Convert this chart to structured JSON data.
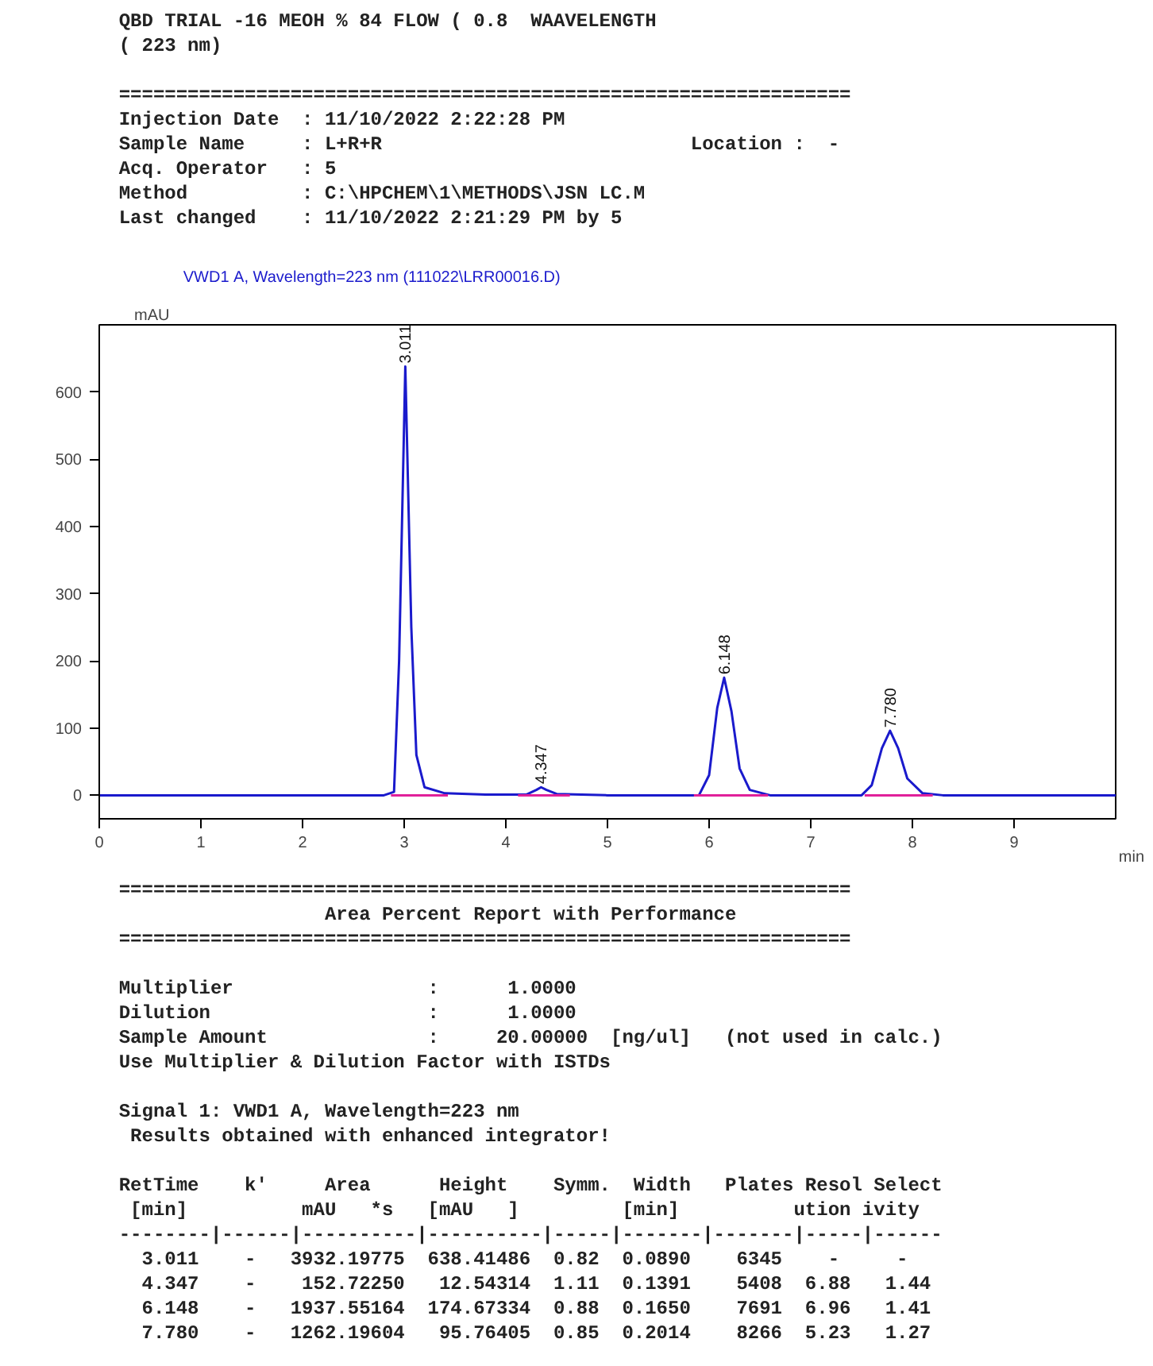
{
  "chart_data": {
    "type": "line",
    "title": "QBD TRIAL -16 MEOH % 84 FLOW ( 0.8  WAAVELENGTH\n( 223 nm)",
    "subtitle": "================================================================\nInjection Date  : 11/10/2022 2:22:28 PM\nSample Name     : L+R+R                           Location :  -\nAcq. Operator   : 5\nMethod          : C:\\HPCHEM\\1\\METHODS\\JSN LC.M\nLast changed    : 11/10/2022 2:21:29 PM by 5",
    "xlabel": "min",
    "ylabel": "mAU",
    "xlim": [
      0,
      10
    ],
    "xticks": [
      0,
      1,
      2,
      3,
      4,
      5,
      6,
      7,
      8,
      9
    ],
    "ylim": [
      -35,
      700
    ],
    "yticks": [
      0,
      100,
      200,
      300,
      400,
      500,
      600
    ],
    "grid": false,
    "marker": "none",
    "line_style": "solid",
    "series": [
      {
        "color": "#1a1acc",
        "x": [
          0,
          2.8,
          2.9,
          2.95,
          3.011,
          3.07,
          3.12,
          3.2,
          3.4,
          3.8,
          4.2,
          4.3,
          4.347,
          4.4,
          4.5,
          5.0,
          5.5,
          5.9,
          6.0,
          6.08,
          6.148,
          6.22,
          6.3,
          6.4,
          6.6,
          7.5,
          7.6,
          7.7,
          7.78,
          7.86,
          7.95,
          8.1,
          8.3,
          10
        ],
        "values": [
          0,
          0,
          5,
          200,
          638,
          250,
          60,
          12,
          3,
          1,
          1,
          8,
          12,
          8,
          2,
          0,
          0,
          0,
          30,
          130,
          175,
          125,
          40,
          8,
          0,
          0,
          15,
          70,
          96,
          70,
          25,
          3,
          0,
          0
        ]
      },
      {
        "color": "#e0209a",
        "x": [
          2.87,
          3.43,
          3.44,
          4.12,
          4.63,
          4.64,
          5.85,
          6.58,
          6.59,
          7.53,
          8.2
        ],
        "values": [
          0,
          0,
          null,
          0,
          0,
          null,
          0,
          0,
          null,
          0,
          0
        ]
      }
    ],
    "annotations": [
      "VWD1 A, Wavelength=223 nm (111022\\LRR00016.D)",
      {
        "text": "3.011",
        "x": 3.011,
        "y": 638
      },
      {
        "text": "4.347",
        "x": 4.347,
        "y": 12
      },
      {
        "text": "6.148",
        "x": 6.148,
        "y": 175
      },
      {
        "text": "7.780",
        "x": 7.78,
        "y": 96
      },
      "================================================================\n                  Area Percent Report with Performance\n================================================================",
      "Multiplier                 :      1.0000\nDilution                   :      1.0000\nSample Amount              :     20.00000  [ng/ul]   (not used in calc.)\nUse Multiplier & Dilution Factor with ISTDs",
      "Signal 1: VWD1 A, Wavelength=223 nm\n Results obtained with enhanced integrator!",
      "RetTime    k'     Area      Height    Symm.  Width   Plates Resol Select\n [min]          mAU   *s   [mAU   ]         [min]          ution ivity\n--------|------|----------|----------|-----|-------|-------|-----|------\n  3.011    -   3932.19775  638.41486  0.82  0.0890    6345    -     -\n  4.347    -    152.72250   12.54314  1.11  0.1391    5408  6.88   1.44\n  6.148    -   1937.55164  174.67334  0.88  0.1650    7691  6.96   1.41\n  7.780    -   1262.19604   95.76405  0.85  0.2014    8266  5.23   1.27"
    ]
  }
}
